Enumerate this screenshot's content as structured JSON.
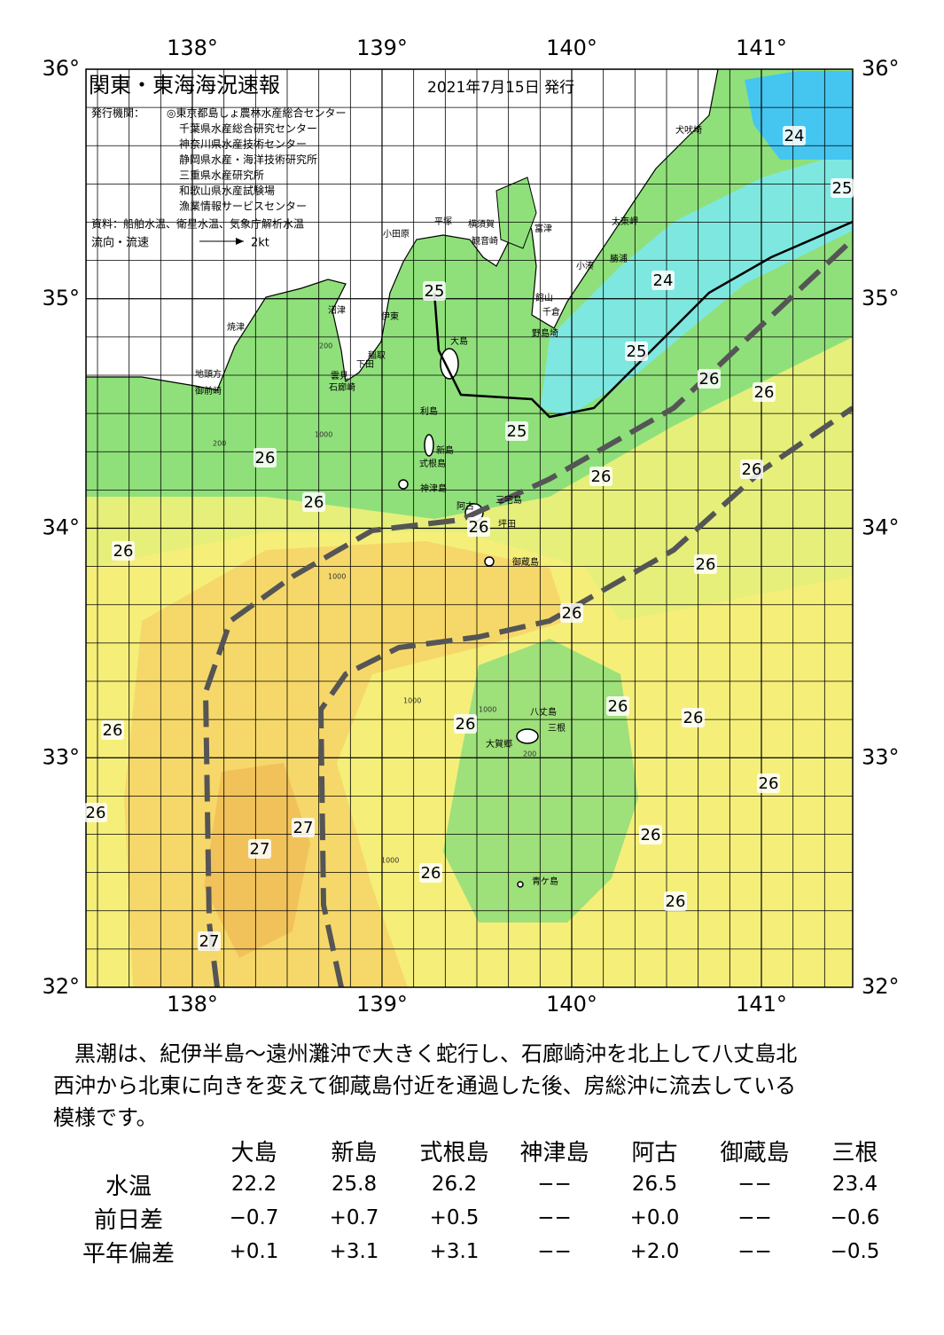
{
  "header": {
    "title": "関東・東海海況速報",
    "date": "2021年7月15日 発行",
    "issuer_label": "発行機関：",
    "issuers": [
      "◎東京都島しょ農林水産総合センター",
      "千葉県水産総合研究センター",
      "神奈川県水産技術センター",
      "静岡県水産・海洋技術研究所",
      "三重県水産研究所",
      "和歌山県水産試験場",
      "漁業情報サービスセンター"
    ],
    "source": "資料：船舶水温、衛星水温、気象庁解析水温",
    "legend_label": "流向・流速",
    "legend_speed": "2kt"
  },
  "map": {
    "lon_labels": [
      "138°",
      "139°",
      "140°",
      "141°"
    ],
    "lat_labels": [
      "36°",
      "35°",
      "34°",
      "33°",
      "32°"
    ],
    "places": [
      "犬吠埼",
      "太東岬",
      "小湊",
      "勝浦",
      "富津",
      "館山",
      "千倉",
      "野島埼",
      "横須賀",
      "観音崎",
      "平塚",
      "小田原",
      "沼津",
      "伊東",
      "稲取",
      "下田",
      "雲見",
      "石廊崎",
      "焼津",
      "地頭方",
      "御前崎",
      "大島",
      "利島",
      "新島",
      "式根島",
      "神津島",
      "三宅島",
      "阿古",
      "坪田",
      "御蔵島",
      "八丈島",
      "三根",
      "大賀郷",
      "青ケ島"
    ],
    "depth_labels": [
      "200",
      "1000",
      "200",
      "1000",
      "1000",
      "1000",
      "200",
      "1000"
    ],
    "temperatures": [
      24,
      25,
      25,
      24,
      25,
      26,
      26,
      25,
      26,
      26,
      26,
      26,
      26,
      26,
      26,
      26,
      26,
      26,
      26,
      26,
      26,
      26,
      27,
      27,
      26,
      26,
      26,
      27
    ]
  },
  "commentary": [
    "黒潮は、紀伊半島～遠州灘沖で大きく蛇行し、石廊崎沖を北上して八丈島北",
    "西沖から北東に向きを変えて御蔵島付近を通過した後、房総沖に流去している",
    "模様です。"
  ],
  "table": {
    "columns": [
      "大島",
      "新島",
      "式根島",
      "神津島",
      "阿古",
      "御蔵島",
      "三根"
    ],
    "rows": [
      {
        "label": "水温",
        "cells": [
          "22.2",
          "25.8",
          "26.2",
          "−−",
          "26.5",
          "−−",
          "23.4"
        ]
      },
      {
        "label": "前日差",
        "cells": [
          "−0.7",
          "+0.7",
          "+0.5",
          "−−",
          "+0.0",
          "−−",
          "−0.6"
        ]
      },
      {
        "label": "平年偏差",
        "cells": [
          "+0.1",
          "+3.1",
          "+3.1",
          "−−",
          "+2.0",
          "−−",
          "−0.5"
        ]
      }
    ]
  }
}
